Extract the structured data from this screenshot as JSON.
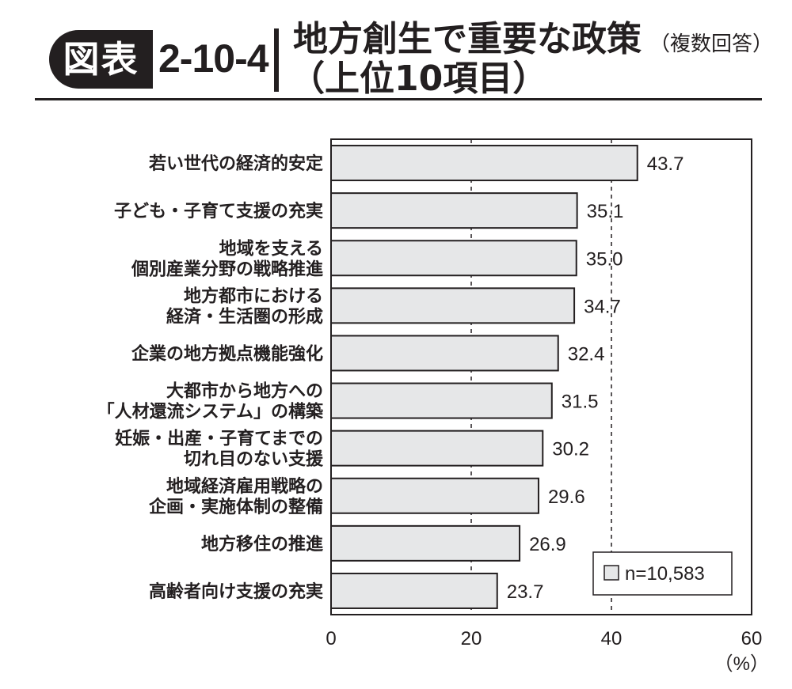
{
  "header": {
    "badge": "図表",
    "figure_number": "2-10-4",
    "title": "地方創生で重要な政策",
    "title_note": "（複数回答）",
    "subtitle": "（上位10項目）"
  },
  "colors": {
    "bar_fill": "#e6e7e8",
    "ink": "#231f20",
    "badge_bg": "#231f20"
  },
  "chart_data": {
    "type": "bar",
    "orientation": "horizontal",
    "categories": [
      [
        "若い世代の経済的安定"
      ],
      [
        "子ども・子育て支援の充実"
      ],
      [
        "地域を支える",
        "個別産業分野の戦略推進"
      ],
      [
        "地方都市における",
        "経済・生活圏の形成"
      ],
      [
        "企業の地方拠点機能強化"
      ],
      [
        "大都市から地方への",
        "「人材還流システム」の構築"
      ],
      [
        "妊娠・出産・子育てまでの",
        "切れ目のない支援"
      ],
      [
        "地域経済雇用戦略の",
        "企画・実施体制の整備"
      ],
      [
        "地方移住の推進"
      ],
      [
        "高齢者向け支援の充実"
      ]
    ],
    "values": [
      43.7,
      35.1,
      35.0,
      34.7,
      32.4,
      31.5,
      30.2,
      29.6,
      26.9,
      23.7
    ],
    "value_labels": [
      "43.7",
      "35.1",
      "35.0",
      "34.7",
      "32.4",
      "31.5",
      "30.2",
      "29.6",
      "26.9",
      "23.7"
    ],
    "xlim": [
      0,
      60
    ],
    "xticks": [
      0,
      20,
      40,
      60
    ],
    "xtick_labels": [
      "0",
      "20",
      "40",
      "60"
    ],
    "xunit": "（%）",
    "grid": "dashed vertical at 20 and 40",
    "legend": {
      "label": "n=10,583",
      "placement": "bottom-right"
    }
  }
}
